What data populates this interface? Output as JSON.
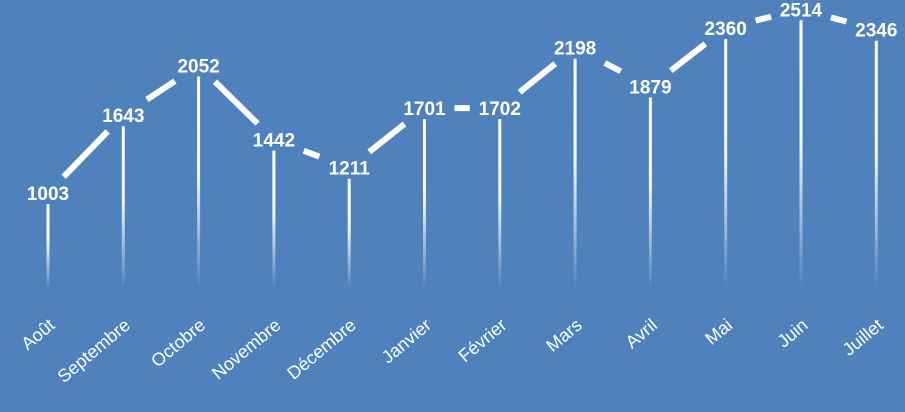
{
  "chart_data": {
    "type": "line",
    "title": "",
    "xlabel": "",
    "ylabel": "",
    "categories": [
      "Août",
      "Septembre",
      "Octobre",
      "Novembre",
      "Décembre",
      "Janvier",
      "Février",
      "Mars",
      "Avril",
      "Mai",
      "Juin",
      "Juillet"
    ],
    "series": [
      {
        "values": [
          1003,
          1643,
          2052,
          1442,
          1211,
          1701,
          1702,
          2198,
          1879,
          2360,
          2514,
          2346
        ]
      }
    ],
    "ylim": [
      0,
      2700
    ],
    "grid": false,
    "legend": "none",
    "data_labels": true,
    "drop_lines": true
  },
  "colors": {
    "background": "#4f81bd",
    "line": "#ffffff",
    "text": "#ffffff"
  }
}
